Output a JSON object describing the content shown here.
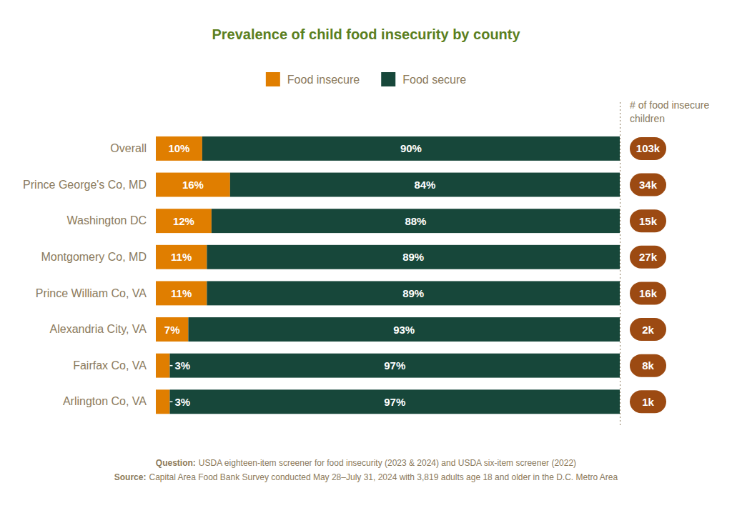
{
  "chart_data": {
    "type": "bar",
    "title": "Prevalence of child food insecurity by county",
    "orientation": "horizontal",
    "stacked": true,
    "data_labels": true,
    "legend": "top",
    "tick_labels": "y",
    "categories": [
      "Overall",
      "Prince George's Co, MD",
      "Washington DC",
      "Montgomery Co, MD",
      "Prince William Co, VA",
      "Alexandria City, VA",
      "Fairfax Co, VA",
      "Arlington Co, VA"
    ],
    "series": [
      {
        "name": "Food insecure",
        "color": "#e07e00",
        "values": [
          10,
          16,
          12,
          11,
          11,
          7,
          3,
          3
        ],
        "value_labels": [
          "10%",
          "16%",
          "12%",
          "11%",
          "11%",
          "7%",
          "3%",
          "3%"
        ]
      },
      {
        "name": "Food secure",
        "color": "#17473a",
        "values": [
          90,
          84,
          88,
          89,
          89,
          93,
          97,
          97
        ],
        "value_labels": [
          "90%",
          "84%",
          "88%",
          "89%",
          "89%",
          "93%",
          "97%",
          "97%"
        ]
      }
    ],
    "xlim": [
      0,
      100
    ],
    "food_insecure_children": {
      "title": "# of food insecure children",
      "values": [
        103000,
        34000,
        15000,
        27000,
        16000,
        2000,
        8000,
        1000
      ],
      "value_labels": [
        "103k",
        "34k",
        "15k",
        "27k",
        "16k",
        "2k",
        "8k",
        "1k"
      ]
    },
    "notes": [
      {
        "label": "Question:",
        "text": "USDA eighteen-item screener for food insecurity (2023 & 2024) and USDA six-item screener (2022)"
      },
      {
        "label": "Source:",
        "text": "Capital Area Food Bank Survey conducted May 28–July 31, 2024 with 3,819 adults age 18 and older in the D.C. Metro Area"
      }
    ]
  }
}
